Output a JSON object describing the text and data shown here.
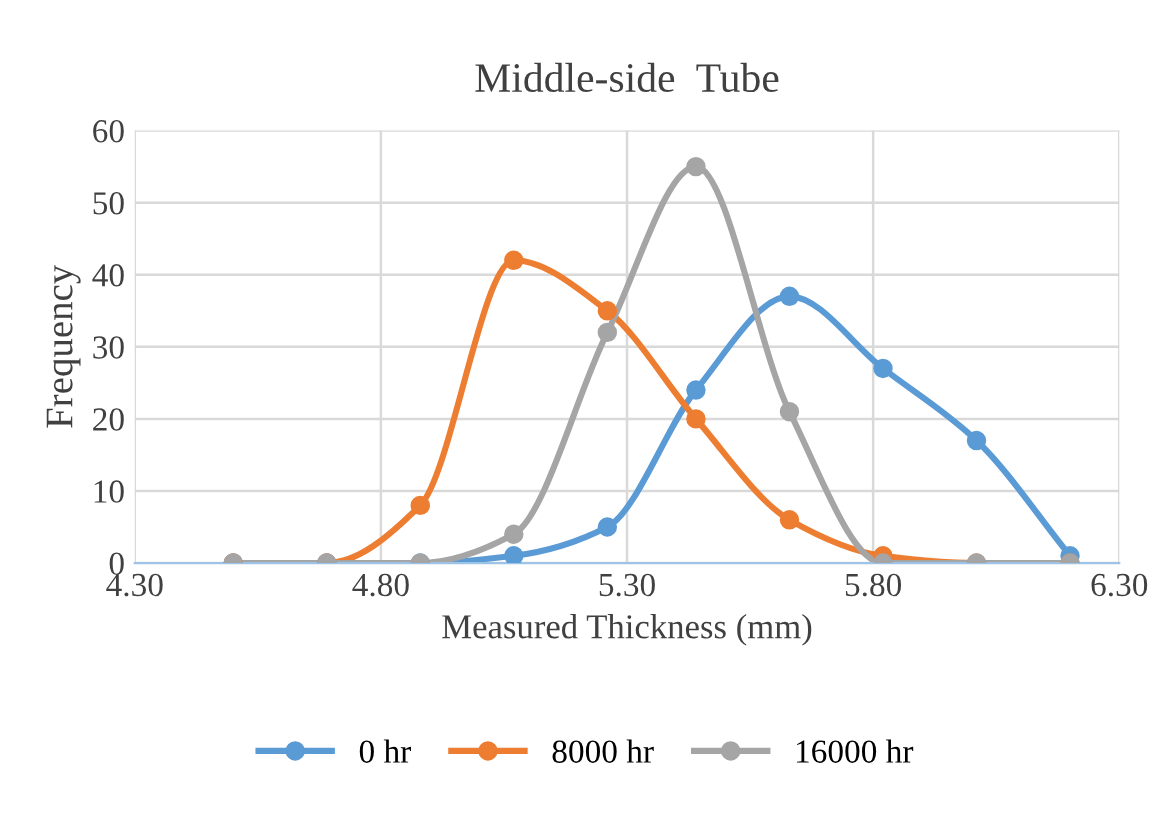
{
  "chart_data": {
    "type": "line",
    "title": "Middle-side  Tube",
    "xlabel": "Measured Thickness (mm)",
    "ylabel": "Frequency",
    "x": [
      4.5,
      4.69,
      4.88,
      5.07,
      5.26,
      5.44,
      5.63,
      5.82,
      6.01,
      6.2
    ],
    "series": [
      {
        "name": "0 hr",
        "color": "#5b9bd5",
        "values": [
          0,
          0,
          0,
          1,
          5,
          24,
          37,
          27,
          17,
          1
        ]
      },
      {
        "name": "8000 hr",
        "color": "#ed7d31",
        "values": [
          0,
          0,
          8,
          42,
          35,
          20,
          6,
          1,
          0,
          0
        ]
      },
      {
        "name": "16000 hr",
        "color": "#a5a5a5",
        "values": [
          0,
          0,
          0,
          4,
          32,
          55,
          21,
          0,
          0,
          0
        ]
      }
    ],
    "xlim": [
      4.3,
      6.3
    ],
    "xticks": [
      {
        "value": 4.3,
        "label": "4.30"
      },
      {
        "value": 4.8,
        "label": "4.80"
      },
      {
        "value": 5.3,
        "label": "5.30"
      },
      {
        "value": 5.8,
        "label": "5.80"
      },
      {
        "value": 6.3,
        "label": "6.30"
      }
    ],
    "ylim": [
      0,
      60
    ],
    "yticks": [
      0,
      10,
      20,
      30,
      40,
      50,
      60
    ],
    "grid": true,
    "legend": "bottom",
    "marker": "circle",
    "line_style": "solid"
  }
}
